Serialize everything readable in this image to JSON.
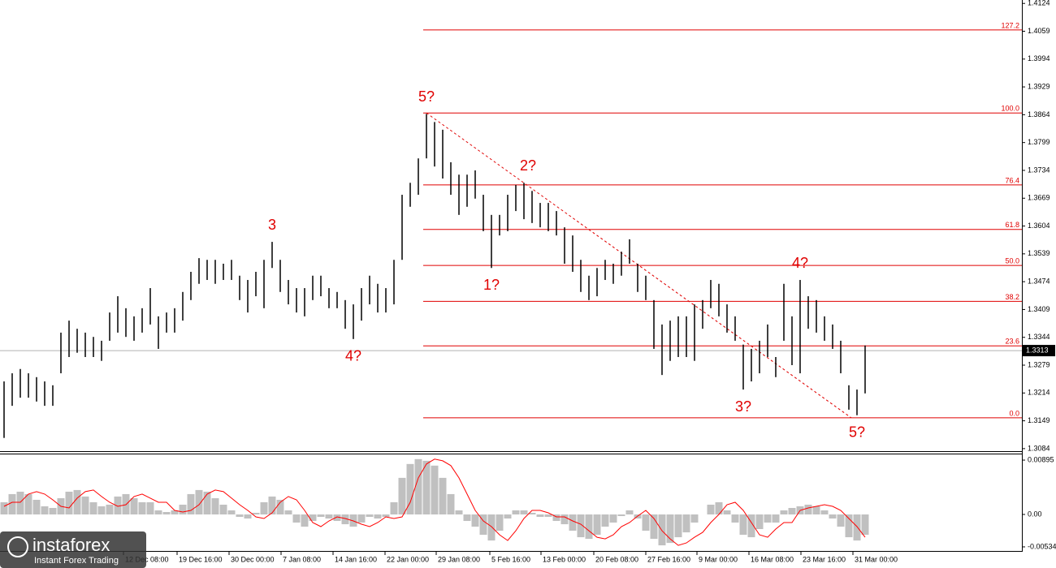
{
  "chart_data": [
    {
      "type": "range",
      "color": "#000000",
      "high": [
        1.3241,
        1.326,
        1.327,
        1.326,
        1.3251,
        1.3241,
        1.3232,
        1.3355,
        1.3383,
        1.3364,
        1.3355,
        1.3345,
        1.3336,
        1.3402,
        1.344,
        1.3412,
        1.3393,
        1.3412,
        1.3459,
        1.3393,
        1.3402,
        1.3412,
        1.345,
        1.3497,
        1.3529,
        1.3525,
        1.3525,
        1.3516,
        1.3525,
        1.3488,
        1.3478,
        1.3497,
        1.3525,
        1.3567,
        1.3525,
        1.3478,
        1.3459,
        1.3459,
        1.3488,
        1.3488,
        1.3459,
        1.345,
        1.3431,
        1.3421,
        1.3459,
        1.3488,
        1.3469,
        1.3459,
        1.3525,
        1.3677,
        1.3705,
        1.3762,
        1.3866,
        1.3847,
        1.3829,
        1.3753,
        1.3724,
        1.3724,
        1.3734,
        1.3677,
        1.363,
        1.363,
        1.3677,
        1.37,
        1.3705,
        1.3686,
        1.3658,
        1.3658,
        1.3639,
        1.3601,
        1.3582,
        1.3525,
        1.3488,
        1.3506,
        1.3525,
        1.3516,
        1.3544,
        1.3573,
        1.3516,
        1.3488,
        1.3431,
        1.3374,
        1.3383,
        1.3393,
        1.3393,
        1.3421,
        1.3431,
        1.3478,
        1.3469,
        1.3421,
        1.3393,
        1.3327,
        1.3317,
        1.3336,
        1.3374,
        1.3298,
        1.3469,
        1.3393,
        1.3478,
        1.344,
        1.3431,
        1.3393,
        1.3374,
        1.3336,
        1.3232,
        1.3222,
        1.3325
      ],
      "low": [
        1.3109,
        1.3184,
        1.3203,
        1.3203,
        1.3194,
        1.3184,
        1.3184,
        1.326,
        1.3298,
        1.3308,
        1.3298,
        1.3298,
        1.3289,
        1.3336,
        1.3355,
        1.3345,
        1.3336,
        1.3355,
        1.3374,
        1.3317,
        1.3355,
        1.3355,
        1.3383,
        1.3431,
        1.3469,
        1.3478,
        1.3469,
        1.3478,
        1.3478,
        1.3431,
        1.3402,
        1.344,
        1.3412,
        1.3506,
        1.345,
        1.3421,
        1.3402,
        1.3393,
        1.3431,
        1.344,
        1.3412,
        1.3412,
        1.3364,
        1.334,
        1.3383,
        1.3421,
        1.3402,
        1.3402,
        1.3421,
        1.3525,
        1.3649,
        1.3677,
        1.3762,
        1.3743,
        1.3715,
        1.3677,
        1.363,
        1.3649,
        1.3668,
        1.3592,
        1.3506,
        1.3582,
        1.3592,
        1.3639,
        1.362,
        1.3611,
        1.3601,
        1.3592,
        1.3582,
        1.3516,
        1.3497,
        1.345,
        1.3431,
        1.344,
        1.3478,
        1.3469,
        1.3488,
        1.3516,
        1.345,
        1.3431,
        1.3317,
        1.3256,
        1.3289,
        1.3298,
        1.3298,
        1.3289,
        1.3364,
        1.3412,
        1.3393,
        1.3355,
        1.3336,
        1.3222,
        1.3241,
        1.326,
        1.3298,
        1.3251,
        1.3336,
        1.3279,
        1.326,
        1.3364,
        1.3355,
        1.3336,
        1.3317,
        1.326,
        1.3175,
        1.3162,
        1.3213
      ],
      "xlim": [
        -0.5,
        125.3
      ],
      "xticks": [
        {
          "value": 14.7,
          "label": "12 Dec 08:00"
        },
        {
          "value": 21.3,
          "label": "19 Dec 16:00"
        },
        {
          "value": 27.7,
          "label": "30 Dec 00:00"
        },
        {
          "value": 34.1,
          "label": "7 Jan 08:00"
        },
        {
          "value": 40.5,
          "label": "14 Jan 16:00"
        },
        {
          "value": 46.9,
          "label": "22 Jan 00:00"
        },
        {
          "value": 53.2,
          "label": "29 Jan 08:00"
        },
        {
          "value": 59.8,
          "label": "5 Feb 16:00"
        },
        {
          "value": 66.1,
          "label": "13 Feb 00:00"
        },
        {
          "value": 72.6,
          "label": "20 Feb 08:00"
        },
        {
          "value": 79,
          "label": "27 Feb 16:00"
        },
        {
          "value": 85.3,
          "label": "9 Mar 00:00"
        },
        {
          "value": 91.7,
          "label": "16 Mar 08:00"
        },
        {
          "value": 98.1,
          "label": "23 Mar 16:00"
        },
        {
          "value": 104.5,
          "label": "31 Mar 00:00"
        }
      ],
      "ylim": [
        1.308,
        1.4132
      ],
      "yticks": [
        1.4124,
        1.4059,
        1.3994,
        1.3929,
        1.3864,
        1.3799,
        1.3734,
        1.3669,
        1.3604,
        1.3539,
        1.3474,
        1.3409,
        1.3344,
        1.3279,
        1.3214,
        1.3149,
        1.3084
      ],
      "last_price": 1.3313,
      "fibonacci": {
        "from": 51.6,
        "color": "#e00000",
        "levels": [
          {
            "label": "127.2",
            "price": 1.4062
          },
          {
            "label": "100.0",
            "price": 1.3868
          },
          {
            "label": "76.4",
            "price": 1.37
          },
          {
            "label": "61.8",
            "price": 1.3596
          },
          {
            "label": "50.0",
            "price": 1.3512
          },
          {
            "label": "38.2",
            "price": 1.3428
          },
          {
            "label": "23.6",
            "price": 1.3324
          },
          {
            "label": "0.0",
            "price": 1.3156
          }
        ]
      },
      "trendline": {
        "x": [
          52,
          104.3
        ],
        "y": [
          1.3868,
          1.3156
        ],
        "color": "#e00000"
      },
      "annotations": [
        {
          "text": "3",
          "x": 33,
          "y": 1.3567,
          "position": "above"
        },
        {
          "text": "4?",
          "x": 43,
          "y": 1.334,
          "position": "below"
        },
        {
          "text": "5?",
          "x": 52,
          "y": 1.3866,
          "position": "above"
        },
        {
          "text": "1?",
          "x": 60,
          "y": 1.3506,
          "position": "below"
        },
        {
          "text": "2?",
          "x": 64.5,
          "y": 1.3705,
          "position": "above"
        },
        {
          "text": "3?",
          "x": 91,
          "y": 1.3222,
          "position": "below"
        },
        {
          "text": "4?",
          "x": 98,
          "y": 1.3478,
          "position": "above"
        },
        {
          "text": "5?",
          "x": 105,
          "y": 1.3162,
          "position": "below"
        }
      ]
    },
    {
      "type": "histogram",
      "color": "#c0c0c0",
      "values": [
        0.00201,
        0.00335,
        0.00375,
        0.00335,
        0.00241,
        0.00134,
        0.00107,
        0.00268,
        0.00375,
        0.00402,
        0.00295,
        0.00201,
        0.00134,
        0.00161,
        0.00295,
        0.00335,
        0.00268,
        0.00201,
        0.00201,
        0.00067,
        0.0004,
        0.00067,
        0.00161,
        0.00335,
        0.00402,
        0.00375,
        0.00268,
        0.00161,
        0.00067,
        -0.0004,
        -0.00067,
        0.00027,
        0.00201,
        0.00295,
        0.00241,
        0.00067,
        -0.00134,
        -0.00201,
        -0.00107,
        -0.0004,
        -0.00067,
        -0.00107,
        -0.00161,
        -0.00201,
        -0.00134,
        -0.0004,
        -0.00067,
        -0.0004,
        0.00201,
        0.00603,
        0.00831,
        0.00911,
        0.00884,
        0.00804,
        0.00603,
        0.00335,
        0.00067,
        -0.00107,
        -0.00201,
        -0.00335,
        -0.00429,
        -0.00268,
        -0.00067,
        0.00067,
        0.00067,
        0.00027,
        -0.0004,
        -0.0004,
        -0.00107,
        -0.00161,
        -0.00268,
        -0.00375,
        -0.00402,
        -0.00335,
        -0.00201,
        -0.00134,
        -0.00027,
        0.00067,
        -0.00067,
        -0.00268,
        -0.00402,
        -0.00509,
        -0.00469,
        -0.00375,
        -0.00295,
        -0.00134,
        0,
        0.00161,
        0.00201,
        0.00067,
        -0.00134,
        -0.00335,
        -0.00375,
        -0.00241,
        -0.00134,
        -0.00134,
        0.00067,
        0.00107,
        0.00134,
        0.00161,
        0.00134,
        0.00067,
        -0.00067,
        -0.00201,
        -0.00375,
        -0.00429,
        -0.00335
      ],
      "signal": {
        "color": "#ff0000",
        "values": [
          0.00134,
          0.00201,
          0.00201,
          0.00335,
          0.00375,
          0.00335,
          0.00241,
          0.00134,
          0.00107,
          0.00268,
          0.00375,
          0.00402,
          0.00295,
          0.00201,
          0.00134,
          0.00161,
          0.00295,
          0.00335,
          0.00268,
          0.00201,
          0.00201,
          0.00067,
          0.0004,
          0.00067,
          0.00161,
          0.00335,
          0.00402,
          0.00375,
          0.00268,
          0.00161,
          0.00067,
          -0.0004,
          -0.00067,
          0.00027,
          0.00201,
          0.00295,
          0.00241,
          0.00067,
          -0.00134,
          -0.00201,
          -0.00107,
          -0.0004,
          -0.00067,
          -0.00107,
          -0.00161,
          -0.00201,
          -0.00134,
          -0.0004,
          -0.00067,
          -0.0004,
          0.00201,
          0.00603,
          0.00831,
          0.00911,
          0.00884,
          0.00804,
          0.00603,
          0.00335,
          0.00067,
          -0.00107,
          -0.00201,
          -0.00335,
          -0.00429,
          -0.00268,
          -0.00067,
          0.00067,
          0.00067,
          0.00027,
          -0.0004,
          -0.0004,
          -0.00107,
          -0.00161,
          -0.00268,
          -0.00375,
          -0.00402,
          -0.00335,
          -0.00201,
          -0.00134,
          -0.00027,
          0.00067,
          -0.00067,
          -0.00268,
          -0.00402,
          -0.00509,
          -0.00469,
          -0.00375,
          -0.00295,
          -0.00134,
          0,
          0.00161,
          0.00201,
          0.00067,
          -0.00134,
          -0.00335,
          -0.00375,
          -0.00241,
          -0.00134,
          -0.00134,
          0.00067,
          0.00107,
          0.00134,
          0.00161,
          0.00134,
          0.00067,
          -0.00067,
          -0.00201,
          -0.00375
        ]
      },
      "xlim": [
        -0.5,
        125.3
      ],
      "ylim": [
        -0.00588,
        0.00989
      ],
      "yticks": [
        0.00895,
        {
          "value": 0,
          "label": "0.00"
        },
        -0.00534
      ]
    }
  ],
  "branding": {
    "name": "instaforex",
    "tagline": "Instant Forex Trading"
  }
}
